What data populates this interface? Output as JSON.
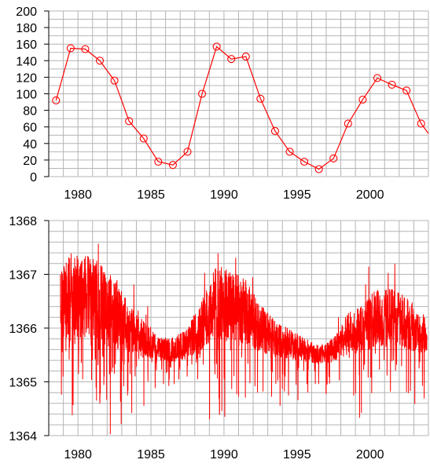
{
  "chart_data": [
    {
      "type": "line",
      "title": "",
      "xlabel": "",
      "ylabel": "",
      "xlim": [
        1978,
        2004
      ],
      "ylim": [
        0,
        200
      ],
      "xticks": [
        1980,
        1985,
        1990,
        1995,
        2000
      ],
      "yticks": [
        0,
        20,
        40,
        60,
        80,
        100,
        120,
        140,
        160,
        180,
        200
      ],
      "grid": true,
      "marker": "circle",
      "color": "#ff0000",
      "series": [
        {
          "x": [
            1978.5,
            1979.5,
            1980.5,
            1981.5,
            1982.5,
            1983.5,
            1984.5,
            1985.5,
            1986.5,
            1987.5,
            1988.5,
            1989.5,
            1990.5,
            1991.5,
            1992.5,
            1993.5,
            1994.5,
            1995.5,
            1996.5,
            1997.5,
            1998.5,
            1999.5,
            2000.5,
            2001.5,
            2002.5,
            2003.5,
            2004.0
          ],
          "y": [
            92,
            155,
            154,
            140,
            116,
            67,
            46,
            18,
            14,
            30,
            100,
            157,
            142,
            145,
            94,
            55,
            30,
            18,
            9,
            22,
            64,
            93,
            119,
            111,
            104,
            64,
            52
          ]
        }
      ]
    },
    {
      "type": "line",
      "title": "",
      "xlabel": "",
      "ylabel": "",
      "xlim": [
        1978,
        2004
      ],
      "ylim": [
        1364,
        1368
      ],
      "xticks": [
        1980,
        1985,
        1990,
        1995,
        2000
      ],
      "yticks": [
        1364,
        1365,
        1366,
        1367,
        1368
      ],
      "grid": true,
      "color": "#ff0000",
      "series": [
        {
          "x": [
            1978.8,
            1979.5,
            1980.5,
            1981.5,
            1982.5,
            1983.5,
            1984.5,
            1985.5,
            1986.5,
            1987.5,
            1988.5,
            1989.5,
            1990.5,
            1991.5,
            1992.5,
            1993.5,
            1994.5,
            1995.5,
            1996.5,
            1997.5,
            1998.5,
            1999.5,
            2000.5,
            2001.5,
            2002.5,
            2003.5,
            2003.9
          ],
          "y": [
            1366.4,
            1366.6,
            1366.6,
            1366.5,
            1366.3,
            1366.0,
            1365.8,
            1365.6,
            1365.6,
            1365.7,
            1366.1,
            1366.5,
            1366.4,
            1366.3,
            1366.0,
            1365.8,
            1365.7,
            1365.6,
            1365.5,
            1365.6,
            1365.9,
            1366.0,
            1366.2,
            1366.2,
            1366.1,
            1365.9,
            1365.9
          ]
        }
      ]
    }
  ]
}
